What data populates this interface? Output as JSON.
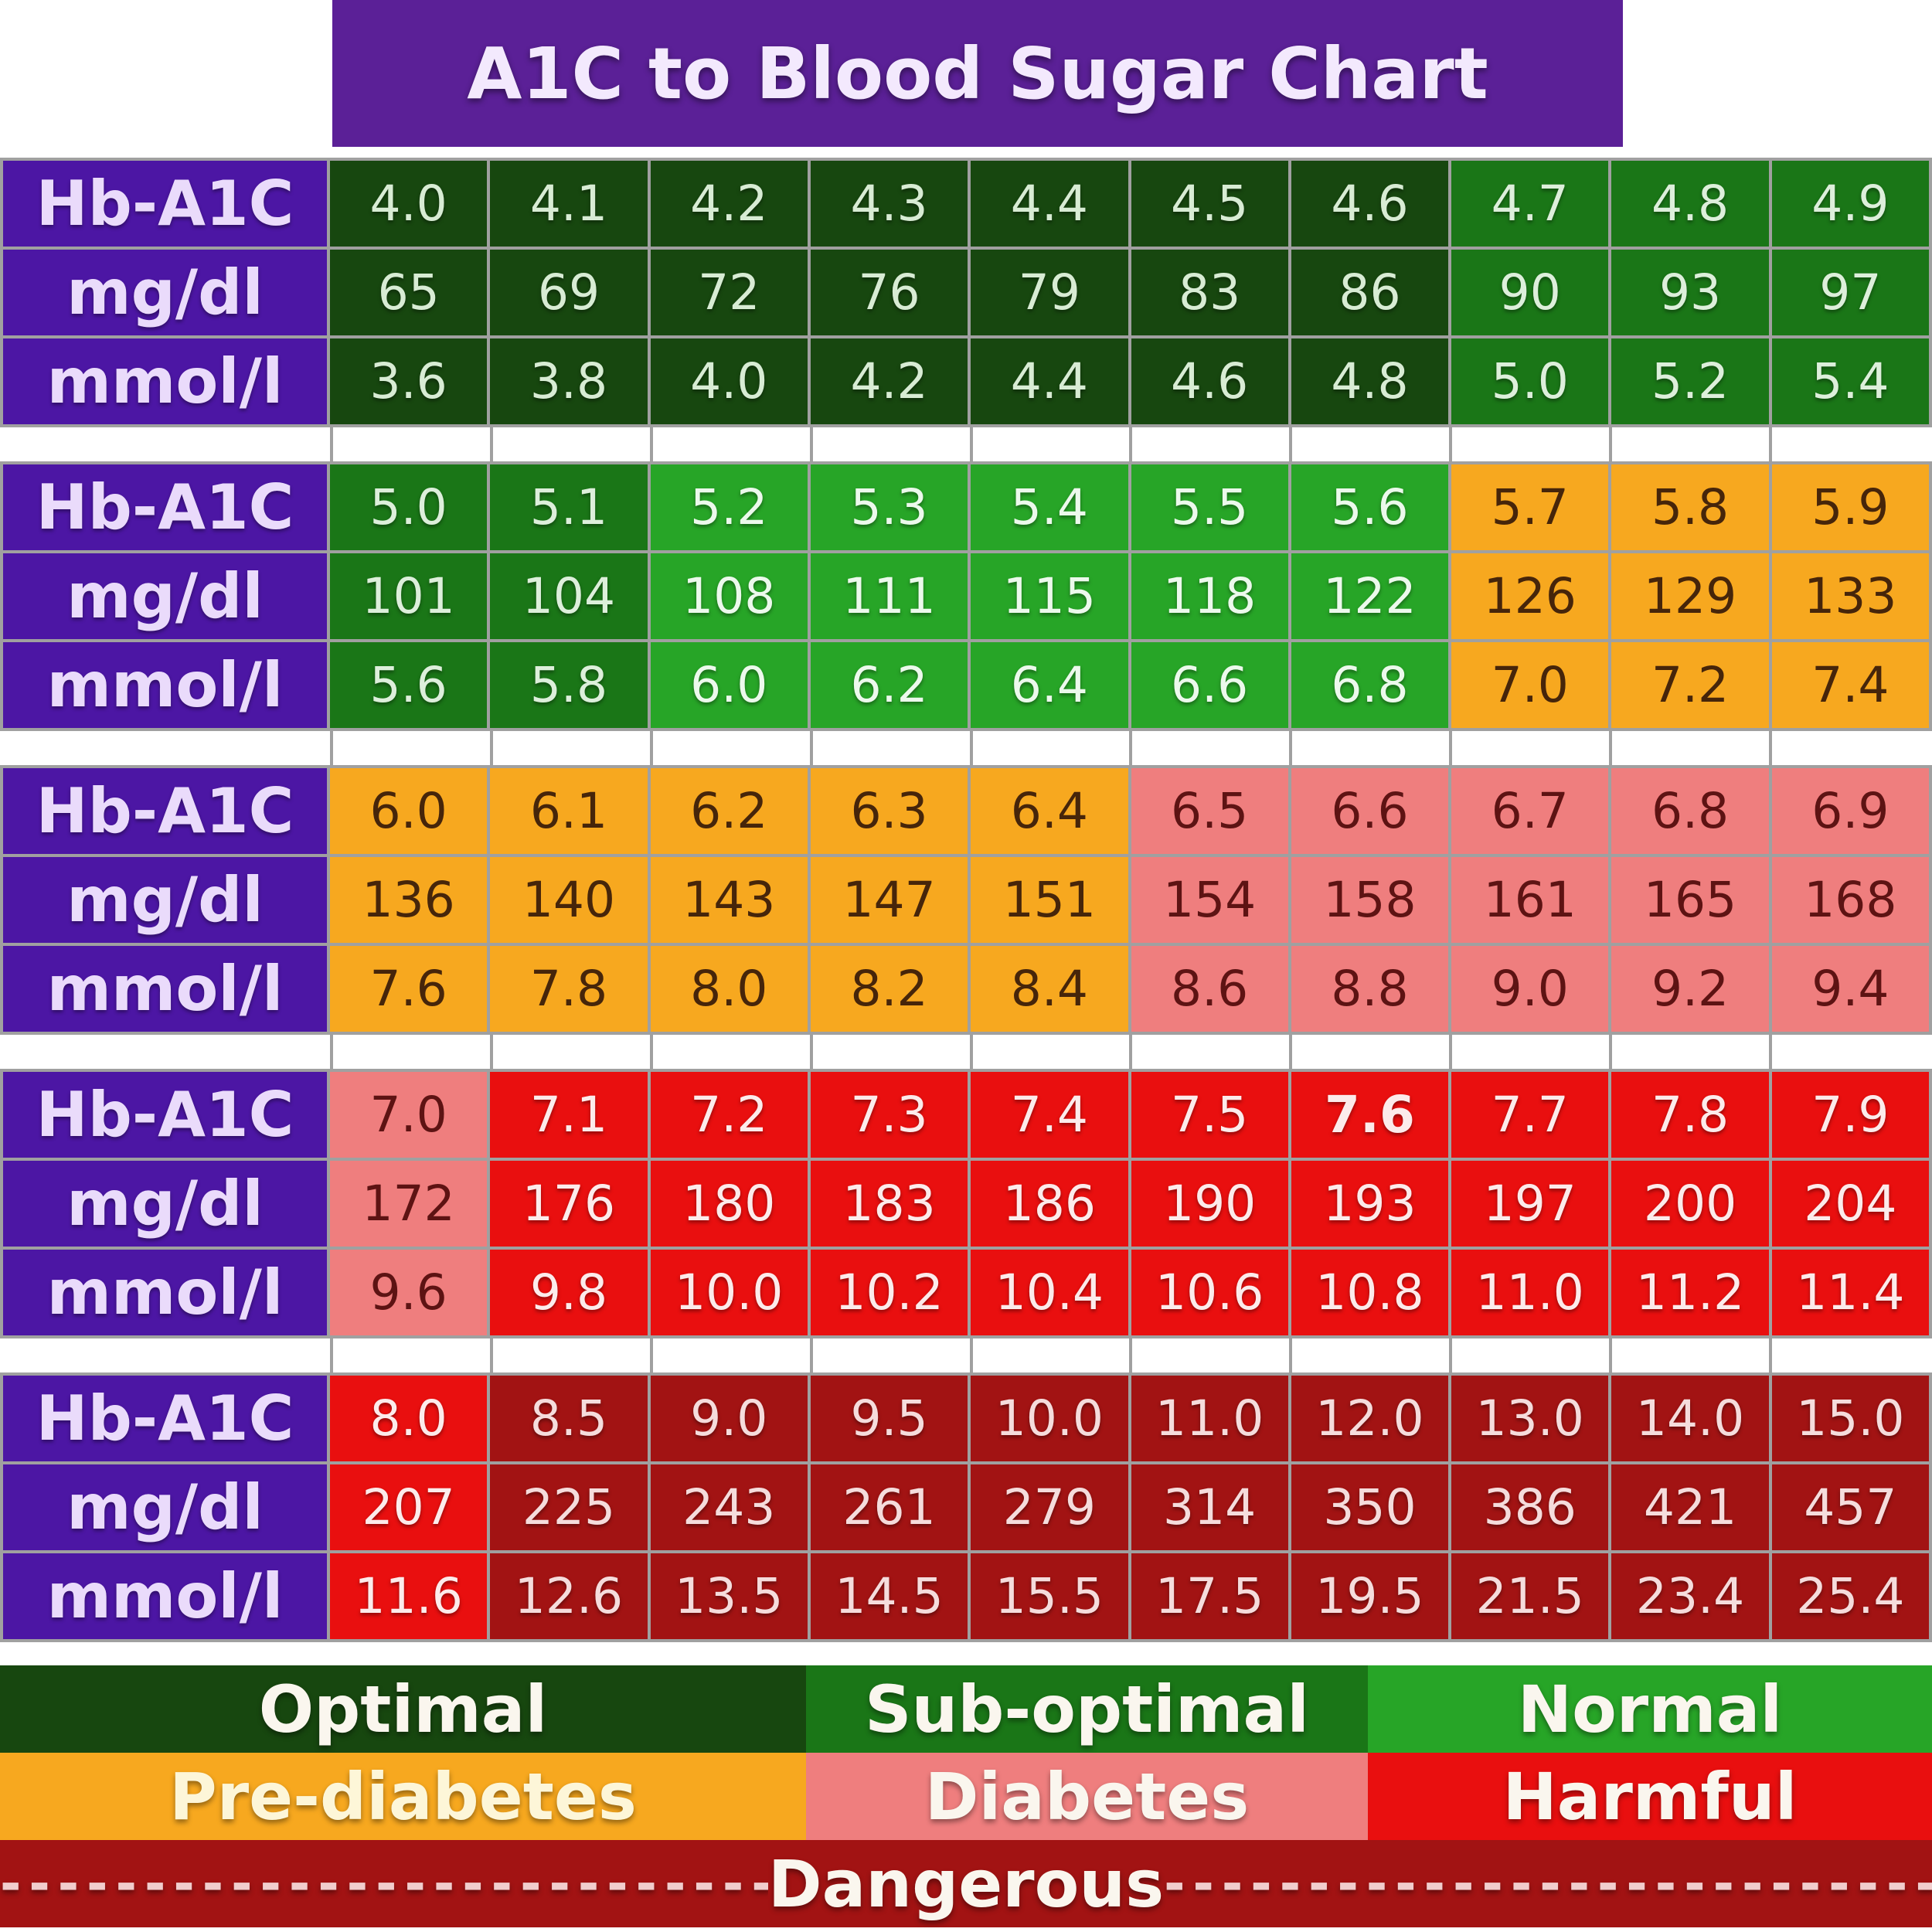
{
  "chart_data": {
    "type": "table",
    "title": "A1C to Blood Sugar Chart",
    "row_labels": [
      "Hb-A1C",
      "mg/dl",
      "mmol/l"
    ],
    "groups": [
      {
        "hba1c": [
          "4.0",
          "4.1",
          "4.2",
          "4.3",
          "4.4",
          "4.5",
          "4.6",
          "4.7",
          "4.8",
          "4.9"
        ],
        "mg_dl": [
          "65",
          "69",
          "72",
          "76",
          "79",
          "83",
          "86",
          "90",
          "93",
          "97"
        ],
        "mmol_l": [
          "3.6",
          "3.8",
          "4.0",
          "4.2",
          "4.4",
          "4.6",
          "4.8",
          "5.0",
          "5.2",
          "5.4"
        ],
        "categories": [
          "optimal",
          "optimal",
          "optimal",
          "optimal",
          "optimal",
          "optimal",
          "optimal",
          "suboptimal",
          "suboptimal",
          "suboptimal"
        ]
      },
      {
        "hba1c": [
          "5.0",
          "5.1",
          "5.2",
          "5.3",
          "5.4",
          "5.5",
          "5.6",
          "5.7",
          "5.8",
          "5.9"
        ],
        "mg_dl": [
          "101",
          "104",
          "108",
          "111",
          "115",
          "118",
          "122",
          "126",
          "129",
          "133"
        ],
        "mmol_l": [
          "5.6",
          "5.8",
          "6.0",
          "6.2",
          "6.4",
          "6.6",
          "6.8",
          "7.0",
          "7.2",
          "7.4"
        ],
        "categories": [
          "suboptimal",
          "suboptimal",
          "normal",
          "normal",
          "normal",
          "normal",
          "normal",
          "prediabetes",
          "prediabetes",
          "prediabetes"
        ]
      },
      {
        "hba1c": [
          "6.0",
          "6.1",
          "6.2",
          "6.3",
          "6.4",
          "6.5",
          "6.6",
          "6.7",
          "6.8",
          "6.9"
        ],
        "mg_dl": [
          "136",
          "140",
          "143",
          "147",
          "151",
          "154",
          "158",
          "161",
          "165",
          "168"
        ],
        "mmol_l": [
          "7.6",
          "7.8",
          "8.0",
          "8.2",
          "8.4",
          "8.6",
          "8.8",
          "9.0",
          "9.2",
          "9.4"
        ],
        "categories": [
          "prediabetes",
          "prediabetes",
          "prediabetes",
          "prediabetes",
          "prediabetes",
          "diabetes",
          "diabetes",
          "diabetes",
          "diabetes",
          "diabetes"
        ]
      },
      {
        "hba1c": [
          "7.0",
          "7.1",
          "7.2",
          "7.3",
          "7.4",
          "7.5",
          "7.6",
          "7.7",
          "7.8",
          "7.9"
        ],
        "mg_dl": [
          "172",
          "176",
          "180",
          "183",
          "186",
          "190",
          "193",
          "197",
          "200",
          "204"
        ],
        "mmol_l": [
          "9.6",
          "9.8",
          "10.0",
          "10.2",
          "10.4",
          "10.6",
          "10.8",
          "11.0",
          "11.2",
          "11.4"
        ],
        "categories": [
          "diabetes",
          "harmful",
          "harmful",
          "harmful",
          "harmful",
          "harmful",
          "harmful",
          "harmful",
          "harmful",
          "harmful"
        ],
        "bold_hba1c_index": 6
      },
      {
        "hba1c": [
          "8.0",
          "8.5",
          "9.0",
          "9.5",
          "10.0",
          "11.0",
          "12.0",
          "13.0",
          "14.0",
          "15.0"
        ],
        "mg_dl": [
          "207",
          "225",
          "243",
          "261",
          "279",
          "314",
          "350",
          "386",
          "421",
          "457"
        ],
        "mmol_l": [
          "11.6",
          "12.6",
          "13.5",
          "14.5",
          "15.5",
          "17.5",
          "19.5",
          "21.5",
          "23.4",
          "25.4"
        ],
        "categories": [
          "harmful",
          "dangerous",
          "dangerous",
          "dangerous",
          "dangerous",
          "dangerous",
          "dangerous",
          "dangerous",
          "dangerous",
          "dangerous"
        ]
      }
    ]
  },
  "legend": {
    "rows": [
      [
        {
          "label": "Optimal",
          "category": "optimal"
        },
        {
          "label": "Sub-optimal",
          "category": "suboptimal"
        },
        {
          "label": "Normal",
          "category": "normal"
        }
      ],
      [
        {
          "label": "Pre-diabetes",
          "category": "prediabetes"
        },
        {
          "label": "Diabetes",
          "category": "diabetes"
        },
        {
          "label": "Harmful",
          "category": "harmful"
        }
      ]
    ],
    "dangerous": {
      "label": "Dangerous",
      "dashes_left": "----------------------------------------",
      "dashes_right": "----------------------------------------",
      "category": "dangerous"
    }
  },
  "colors": {
    "title": {
      "bg": "#5b2097",
      "text": "#f3e9fd"
    },
    "label": {
      "bg": "#4c16a4",
      "text": "#eadbfb"
    },
    "optimal": {
      "bg": "#17470f",
      "text": "#d8ecd4"
    },
    "suboptimal": {
      "bg": "#1a7617",
      "text": "#ddefdb"
    },
    "normal": {
      "bg": "#27a527",
      "text": "#ecf9ec"
    },
    "prediabetes": {
      "bg": "#f7a81f",
      "text": "#46250a"
    },
    "diabetes": {
      "bg": "#ef7e7e",
      "text": "#5d1313"
    },
    "harmful": {
      "bg": "#e90f0f",
      "text": "#fcebeb"
    },
    "dangerous": {
      "bg": "#a21313",
      "text": "#f5dcdc"
    },
    "legend_text": "#faf6ee",
    "legend_prediabetes_text": "#fdf6d8",
    "dash_text": "#f1cdcd",
    "grid": "#a0a0a0"
  }
}
